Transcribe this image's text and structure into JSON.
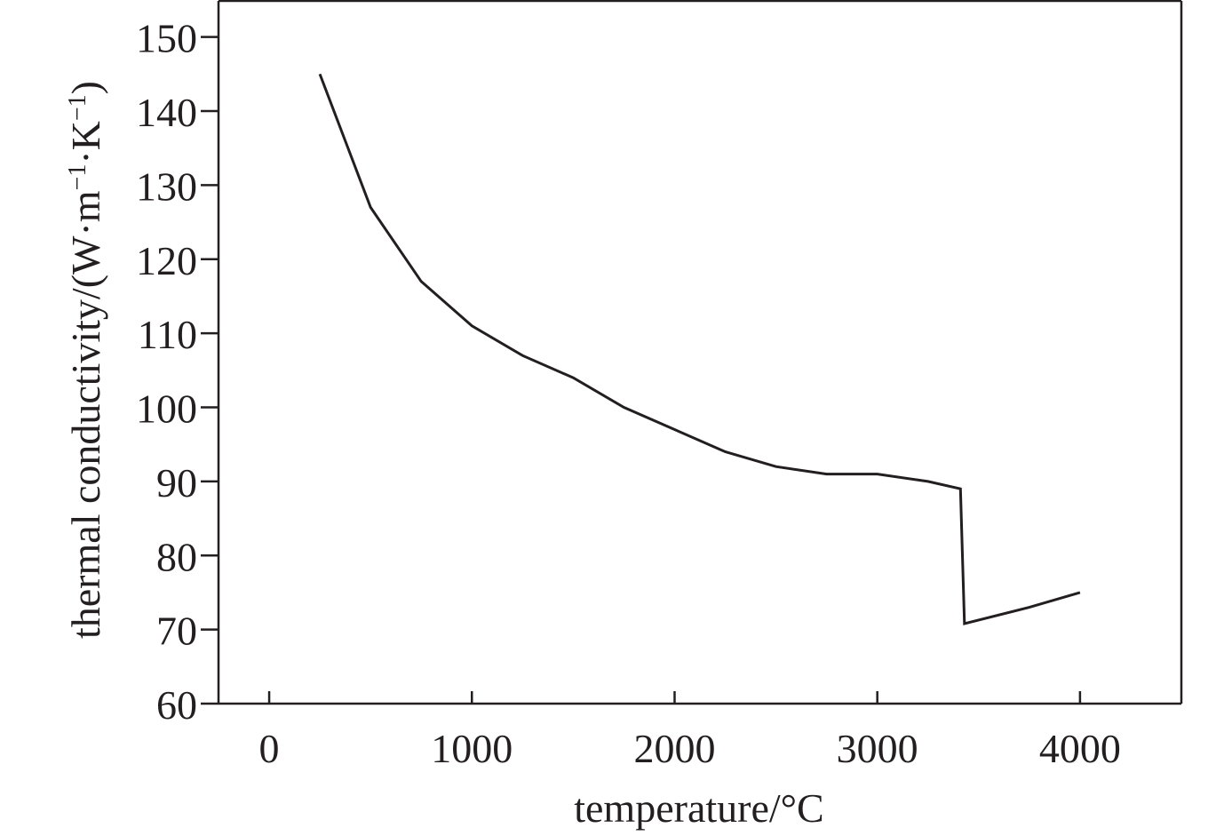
{
  "chart_data": {
    "type": "line",
    "xlabel": "temperature/°C",
    "ylabel": {
      "prefix": "thermal conductivity/(W·m",
      "sup1": "−1",
      "mid": "·K",
      "sup2": "−1",
      "suffix": ")"
    },
    "xlim": [
      -250,
      4500
    ],
    "ylim": [
      60,
      155
    ],
    "xticks": [
      0,
      1000,
      2000,
      3000,
      4000
    ],
    "xtick_labels": [
      "0",
      "1000",
      "2000",
      "3000",
      "4000"
    ],
    "yticks": [
      60,
      70,
      80,
      90,
      100,
      110,
      120,
      130,
      140,
      150
    ],
    "ytick_labels": [
      "60",
      "70",
      "80",
      "90",
      "100",
      "110",
      "120",
      "130",
      "140",
      "150"
    ],
    "grid": false,
    "color": "#231f20",
    "series": [
      {
        "x": [
          250,
          500,
          750,
          1000,
          1250,
          1500,
          1750,
          2000,
          2250,
          2500,
          2750,
          3000,
          3250,
          3410,
          3430,
          3750,
          4000
        ],
        "y": [
          145,
          127,
          117,
          111,
          107,
          104,
          100,
          97,
          94,
          92,
          91,
          91,
          90,
          89,
          70.8,
          73,
          75
        ]
      }
    ]
  }
}
